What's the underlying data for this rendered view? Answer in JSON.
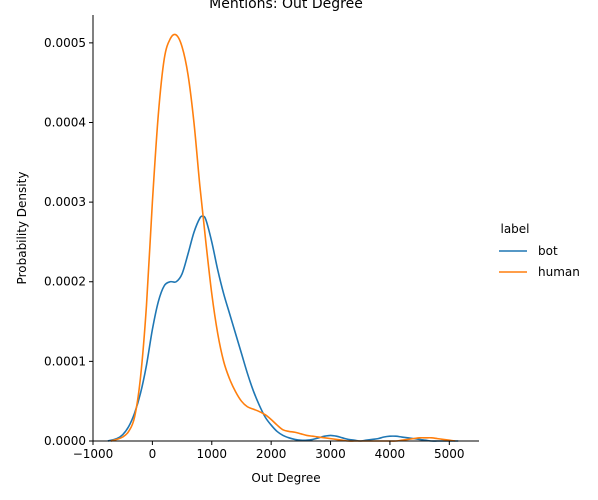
{
  "chart_data": {
    "type": "line",
    "title": "Mentions: Out Degree",
    "xlabel": "Out Degree",
    "ylabel": "Probability Density",
    "xlim": [
      -1000,
      5500
    ],
    "ylim": [
      0,
      0.000535
    ],
    "xticks": [
      -1000,
      0,
      1000,
      2000,
      3000,
      4000,
      5000
    ],
    "xtick_labels": [
      "−1000",
      "0",
      "1000",
      "2000",
      "3000",
      "4000",
      "5000"
    ],
    "yticks": [
      0,
      0.0001,
      0.0002,
      0.0003,
      0.0004,
      0.0005
    ],
    "ytick_labels": [
      "0.0000",
      "0.0001",
      "0.0002",
      "0.0003",
      "0.0004",
      "0.0005"
    ],
    "grid": false,
    "legend": {
      "title": "label",
      "placement": "right"
    },
    "series": [
      {
        "name": "bot",
        "color": "#1f77b4",
        "x": [
          -750,
          -600,
          -500,
          -400,
          -300,
          -200,
          -100,
          0,
          100,
          200,
          300,
          400,
          500,
          600,
          700,
          800,
          850,
          900,
          1000,
          1100,
          1200,
          1300,
          1400,
          1500,
          1600,
          1700,
          1800,
          1900,
          2000,
          2100,
          2200,
          2300,
          2400,
          2500,
          2600,
          2700,
          2800,
          2900,
          3000,
          3100,
          3200,
          3300,
          3400,
          3500,
          3600,
          3700,
          3800,
          3900,
          4000,
          4100,
          4200,
          4300,
          4400,
          4500,
          4600,
          4700,
          4800,
          4900,
          5000,
          5150
        ],
        "y": [
          0,
          3e-06,
          8e-06,
          1.8e-05,
          3.5e-05,
          6e-05,
          9.5e-05,
          0.00014,
          0.000175,
          0.000195,
          0.0002,
          0.0002,
          0.00021,
          0.000235,
          0.000262,
          0.00028,
          0.000282,
          0.000278,
          0.00025,
          0.000215,
          0.000185,
          0.00016,
          0.000135,
          0.00011,
          8.5e-05,
          6.3e-05,
          4.5e-05,
          3e-05,
          2e-05,
          1.2e-05,
          7e-06,
          4e-06,
          2e-06,
          1e-06,
          1e-06,
          2e-06,
          4e-06,
          6e-06,
          7e-06,
          6e-06,
          4e-06,
          2e-06,
          1e-06,
          0,
          1e-06,
          2e-06,
          3e-06,
          5e-06,
          6e-06,
          6e-06,
          5e-06,
          4e-06,
          3e-06,
          2e-06,
          1e-06,
          0,
          0,
          0,
          0,
          0
        ]
      },
      {
        "name": "human",
        "color": "#ff7f0e",
        "x": [
          -700,
          -600,
          -500,
          -400,
          -300,
          -200,
          -100,
          0,
          100,
          200,
          300,
          400,
          500,
          600,
          700,
          800,
          900,
          1000,
          1100,
          1200,
          1300,
          1400,
          1500,
          1600,
          1700,
          1800,
          1900,
          2000,
          2100,
          2200,
          2300,
          2400,
          2500,
          2600,
          2700,
          2800,
          2900,
          3000,
          3100,
          3200,
          3300,
          3400,
          3500,
          3600,
          3700,
          3800,
          3900,
          4000,
          4100,
          4200,
          4300,
          4400,
          4500,
          4600,
          4700,
          4800,
          4900,
          5000,
          5100
        ],
        "y": [
          0,
          2e-06,
          5e-06,
          1.2e-05,
          3e-05,
          8e-05,
          0.00017,
          0.0003,
          0.00041,
          0.00048,
          0.000505,
          0.00051,
          0.000495,
          0.00046,
          0.0004,
          0.00032,
          0.00025,
          0.000185,
          0.000135,
          0.0001,
          7.8e-05,
          6.2e-05,
          5e-05,
          4.3e-05,
          4e-05,
          3.7e-05,
          3.3e-05,
          2.7e-05,
          2e-05,
          1.4e-05,
          1.2e-05,
          1.1e-05,
          9e-06,
          7e-06,
          6e-06,
          5e-06,
          4e-06,
          3e-06,
          2e-06,
          1e-06,
          0,
          0,
          0,
          0,
          0,
          0,
          0,
          0,
          0,
          1e-06,
          2e-06,
          3e-06,
          4e-06,
          4e-06,
          4e-06,
          3e-06,
          2e-06,
          1e-06,
          0
        ]
      }
    ]
  }
}
